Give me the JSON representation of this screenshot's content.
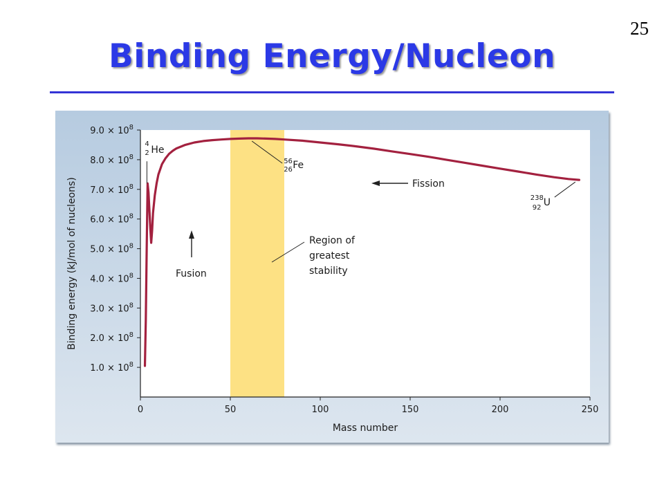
{
  "slide": {
    "number": "25",
    "title": "Binding Energy/Nucleon"
  },
  "colors": {
    "title": "#2b39e6",
    "rule": "#3434d6",
    "curve": "#a3213f",
    "stability_band": "#fde184",
    "figure_background": "#c3d5e6",
    "plot_background": "#ffffff"
  },
  "chart_data": {
    "type": "line",
    "title": "",
    "xlabel": "Mass number",
    "ylabel": "Binding energy (kJ/mol of nucleons)",
    "xlim": [
      0,
      250
    ],
    "ylim": [
      0,
      900000000.0
    ],
    "grid": false,
    "x_ticks": [
      0,
      50,
      100,
      150,
      200,
      250
    ],
    "y_ticks": [
      {
        "value": 100000000.0,
        "mantissa": "1.0",
        "base": "× 10",
        "exp": "8"
      },
      {
        "value": 200000000.0,
        "mantissa": "2.0",
        "base": "× 10",
        "exp": "8"
      },
      {
        "value": 300000000.0,
        "mantissa": "3.0",
        "base": "× 10",
        "exp": "8"
      },
      {
        "value": 400000000.0,
        "mantissa": "4.0",
        "base": "× 10",
        "exp": "8"
      },
      {
        "value": 500000000.0,
        "mantissa": "5.0",
        "base": "× 10",
        "exp": "8"
      },
      {
        "value": 600000000.0,
        "mantissa": "6.0",
        "base": "× 10",
        "exp": "8"
      },
      {
        "value": 700000000.0,
        "mantissa": "7.0",
        "base": "× 10",
        "exp": "8"
      },
      {
        "value": 800000000.0,
        "mantissa": "8.0",
        "base": "× 10",
        "exp": "8"
      },
      {
        "value": 900000000.0,
        "mantissa": "9.0",
        "base": "× 10",
        "exp": "8"
      }
    ],
    "series": [
      {
        "x": [
          2.5,
          3,
          3.5,
          4,
          4.5,
          5,
          5.5,
          6,
          6.5,
          7,
          8,
          9,
          10,
          12,
          14,
          16,
          18,
          20,
          25,
          30,
          35,
          40,
          45,
          50,
          55,
          60,
          65,
          70,
          75,
          80,
          90,
          100,
          110,
          120,
          130,
          140,
          150,
          160,
          170,
          180,
          190,
          200,
          210,
          220,
          230,
          238,
          244
        ],
        "y": [
          105000000.0,
          260000000.0,
          500000000.0,
          720000000.0,
          690000000.0,
          630000000.0,
          570000000.0,
          520000000.0,
          560000000.0,
          620000000.0,
          680000000.0,
          720000000.0,
          750000000.0,
          785000000.0,
          805000000.0,
          820000000.0,
          830000000.0,
          838000000.0,
          850000000.0,
          858000000.0,
          863000000.0,
          866000000.0,
          868000000.0,
          870000000.0,
          871000000.0,
          872000000.0,
          872000000.0,
          871000000.0,
          870000000.0,
          868000000.0,
          864000000.0,
          858000000.0,
          852000000.0,
          845000000.0,
          837000000.0,
          828000000.0,
          819000000.0,
          810000000.0,
          800000000.0,
          790000000.0,
          780000000.0,
          770000000.0,
          760000000.0,
          750000000.0,
          741000000.0,
          735000000.0,
          732000000.0
        ]
      }
    ],
    "band": {
      "x_start": 50,
      "x_end": 80,
      "label_lines": [
        "Region of",
        "greatest",
        "stability"
      ]
    },
    "annotations": {
      "he": {
        "mass": "4",
        "number": "2",
        "symbol": "He",
        "x": 4,
        "y": 720000000.0
      },
      "fe": {
        "mass": "56",
        "number": "26",
        "symbol": "Fe",
        "x": 62,
        "y": 872000000.0
      },
      "u": {
        "mass": "238",
        "number": "92",
        "symbol": "U",
        "x": 243,
        "y": 732000000.0
      },
      "fission": {
        "label": "Fission"
      },
      "fusion": {
        "label": "Fusion"
      }
    }
  }
}
